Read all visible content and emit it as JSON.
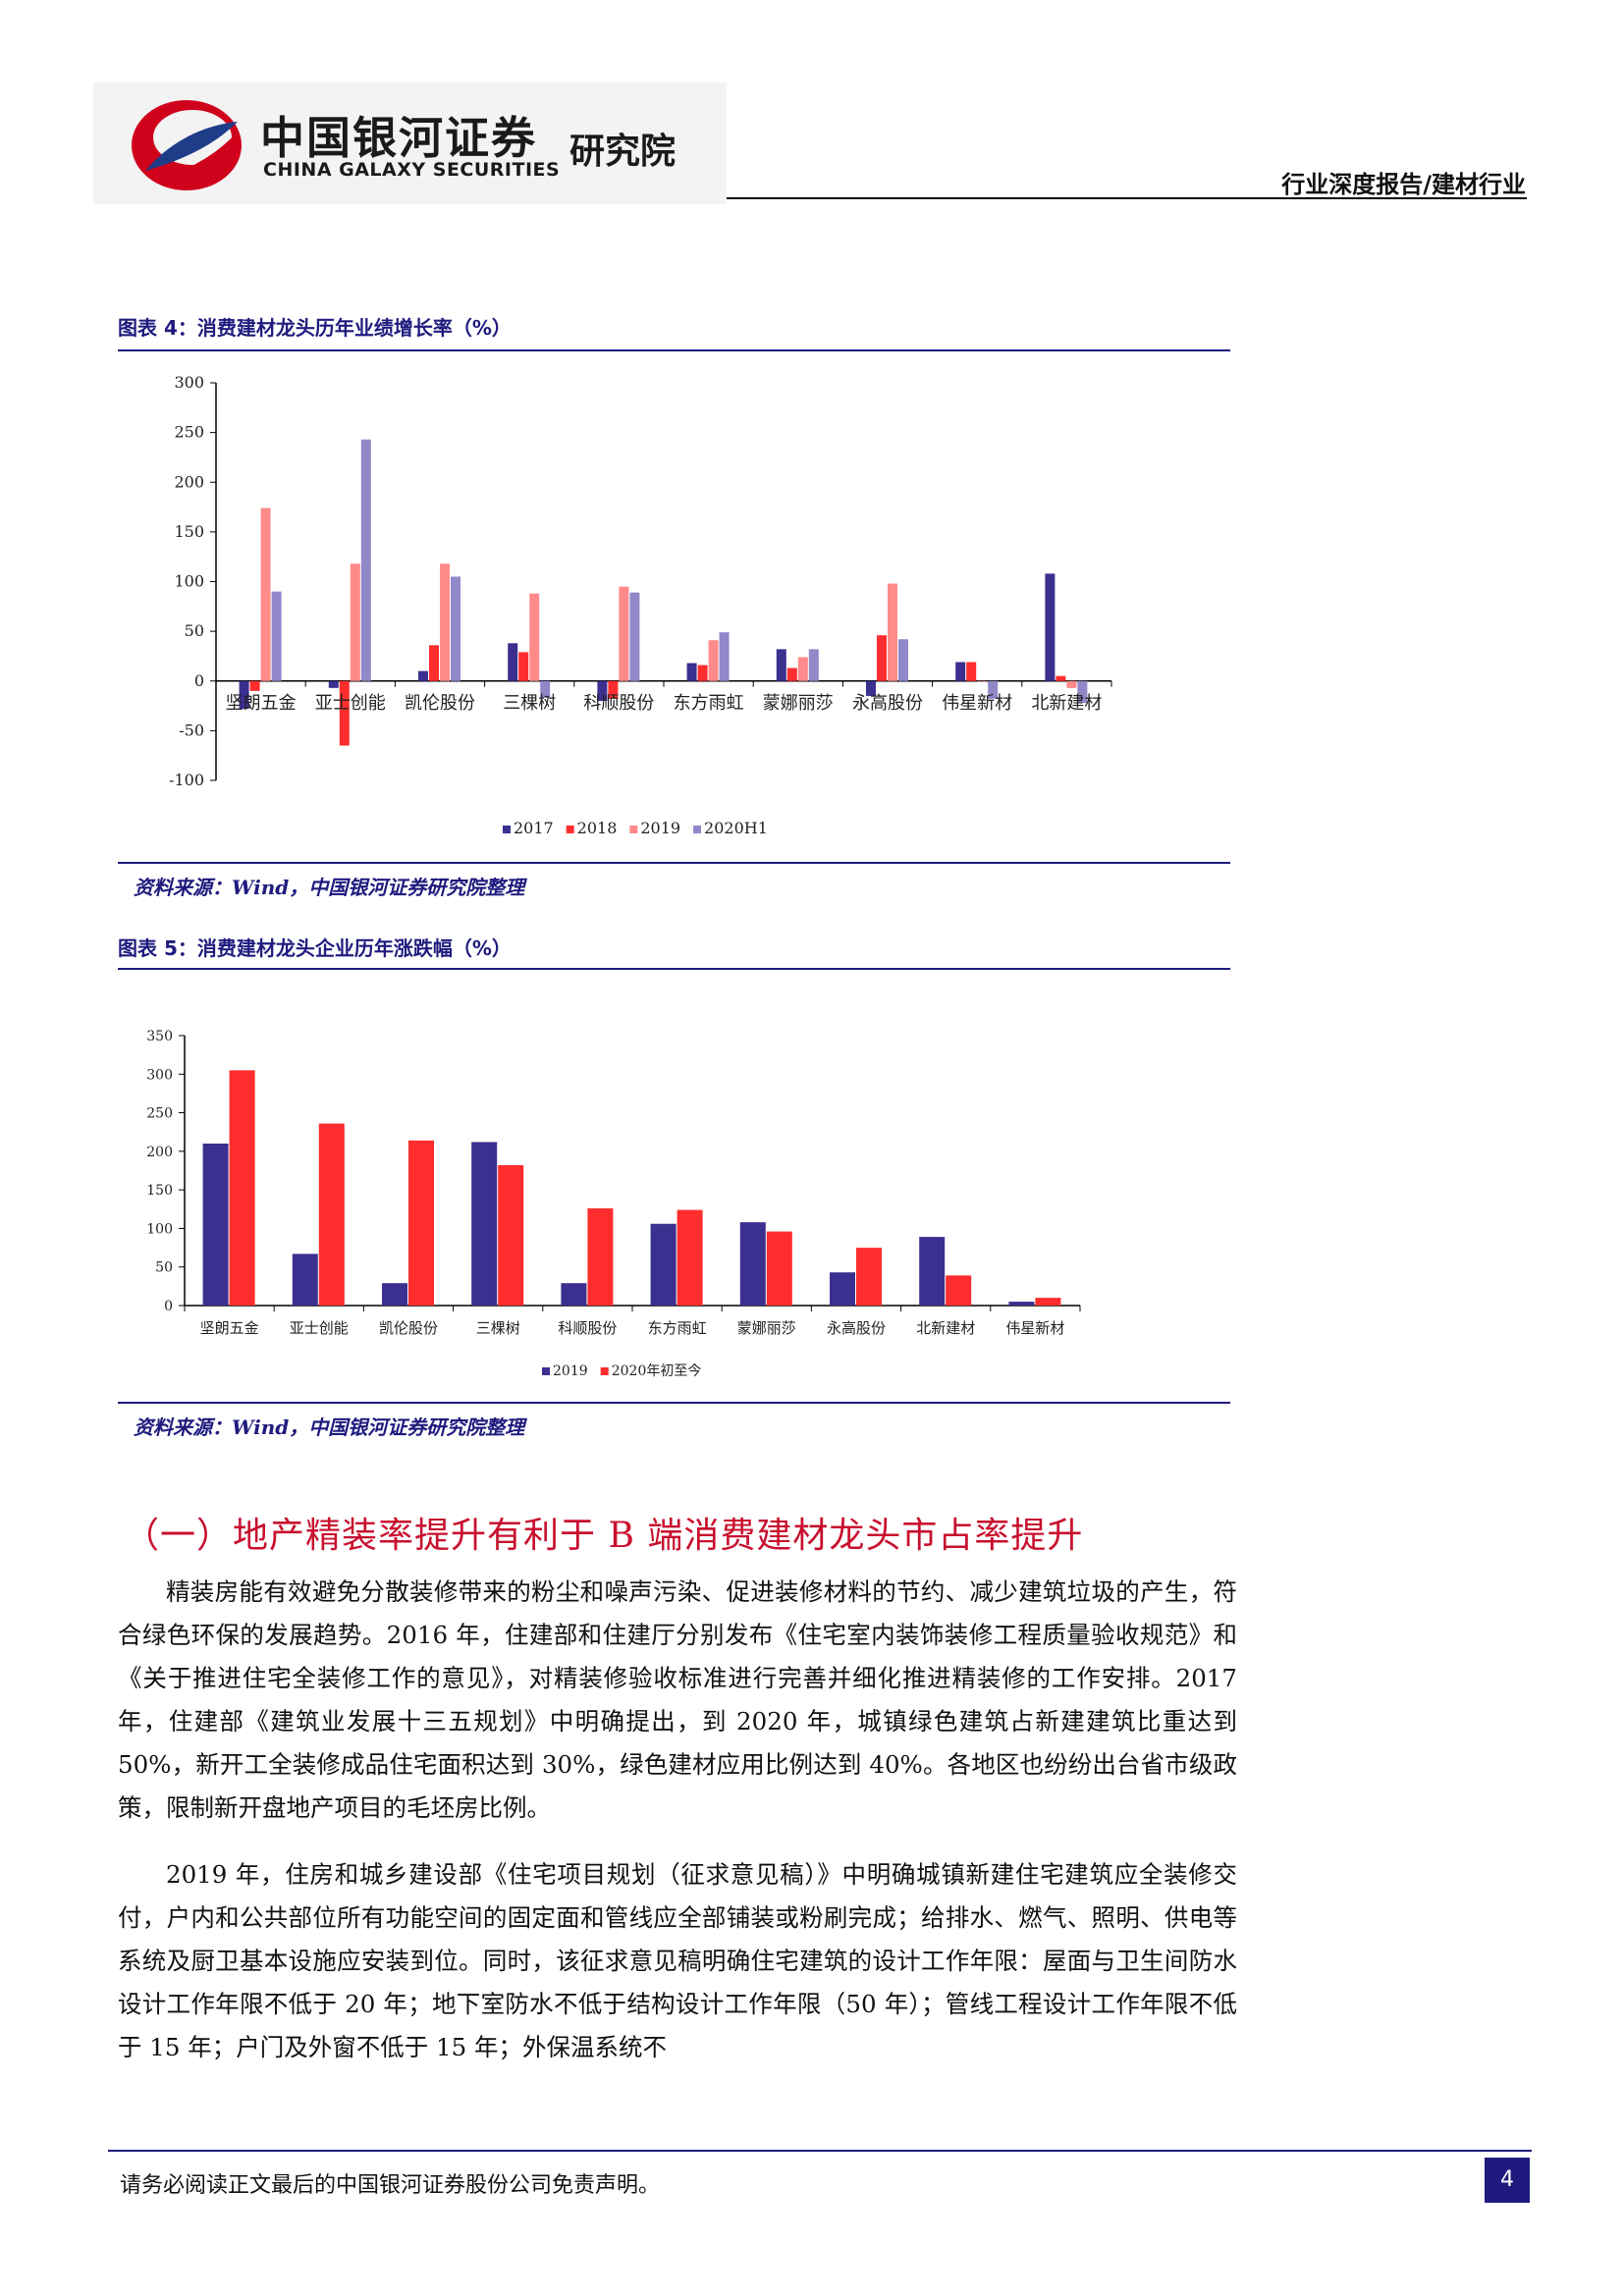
{
  "header": {
    "brand_cn": "中国银河证券",
    "brand_en": "CHINA GALAXY SECURITIES",
    "brand_inst": "研究院",
    "report_type": "行业深度报告/建材行业"
  },
  "figure4": {
    "title": "图表 4：消费建材龙头历年业绩增长率（%）",
    "source": "资料来源：Wind，中国银河证券研究院整理"
  },
  "figure5": {
    "title": "图表 5：消费建材龙头企业历年涨跌幅（%）",
    "source": "资料来源：Wind，中国银河证券研究院整理"
  },
  "colors": {
    "navy": "#3b2f8f",
    "red": "#ff2d2d",
    "pink": "#ff8a8a",
    "lavender": "#9188c9",
    "accent": "#1f1b7e",
    "heading": "#c8102e"
  },
  "chart_data": [
    {
      "type": "bar",
      "categories": [
        "坚朗五金",
        "亚士创能",
        "凯伦股份",
        "三棵树",
        "科顺股份",
        "东方雨虹",
        "蒙娜丽莎",
        "永高股份",
        "伟星新材",
        "北新建材"
      ],
      "series": [
        {
          "name": "2017",
          "color": "#3b2f8f",
          "values": [
            -28,
            -7,
            10,
            38,
            -20,
            18,
            32,
            -15,
            19,
            108
          ]
        },
        {
          "name": "2018",
          "color": "#ff2d2d",
          "values": [
            -10,
            -65,
            36,
            29,
            -18,
            16,
            13,
            46,
            19,
            5
          ]
        },
        {
          "name": "2019",
          "color": "#ff8a8a",
          "values": [
            174,
            118,
            118,
            88,
            95,
            41,
            24,
            98,
            0,
            -7
          ]
        },
        {
          "name": "2020H1",
          "color": "#9188c9",
          "values": [
            90,
            243,
            105,
            -17,
            89,
            49,
            32,
            42,
            -18,
            -22
          ]
        }
      ],
      "ylim": [
        -100,
        300
      ],
      "yticks": [
        "300",
        "250",
        "200",
        "150",
        "100",
        "50",
        "0",
        "-50",
        "-100"
      ],
      "legend": "bottom"
    },
    {
      "type": "bar",
      "categories": [
        "坚朗五金",
        "亚士创能",
        "凯伦股份",
        "三棵树",
        "科顺股份",
        "东方雨虹",
        "蒙娜丽莎",
        "永高股份",
        "北新建材",
        "伟星新材"
      ],
      "series": [
        {
          "name": "2019",
          "color": "#3b2f8f",
          "values": [
            210,
            67,
            29,
            212,
            29,
            106,
            108,
            43,
            89,
            5
          ]
        },
        {
          "name": "2020年初至今",
          "color": "#ff2d2d",
          "values": [
            305,
            236,
            214,
            182,
            126,
            124,
            96,
            75,
            39,
            10
          ]
        }
      ],
      "ylim": [
        0,
        350
      ],
      "yticks": [
        "350",
        "300",
        "250",
        "200",
        "150",
        "100",
        "50",
        "0"
      ],
      "legend": "bottom"
    }
  ],
  "section": {
    "heading": "（一）地产精装率提升有利于 B 端消费建材龙头市占率提升"
  },
  "body": {
    "para1": "精装房能有效避免分散装修带来的粉尘和噪声污染、促进装修材料的节约、减少建筑垃圾的产生，符合绿色环保的发展趋势。2016 年，住建部和住建厅分别发布《住宅室内装饰装修工程质量验收规范》和《关于推进住宅全装修工作的意见》，对精装修验收标准进行完善并细化推进精装修的工作安排。2017 年，住建部《建筑业发展十三五规划》中明确提出，到 2020 年，城镇绿色建筑占新建建筑比重达到 50%，新开工全装修成品住宅面积达到 30%，绿色建材应用比例达到 40%。各地区也纷纷出台省市级政策，限制新开盘地产项目的毛坯房比例。",
    "para2": "2019 年，住房和城乡建设部《住宅项目规划（征求意见稿）》中明确城镇新建住宅建筑应全装修交付，户内和公共部位所有功能空间的固定面和管线应全部铺装或粉刷完成；给排水、燃气、照明、供电等系统及厨卫基本设施应安装到位。同时，该征求意见稿明确住宅建筑的设计工作年限：屋面与卫生间防水设计工作年限不低于 20 年；地下室防水不低于结构设计工作年限（50 年）；管线工程设计工作年限不低于 15 年；户门及外窗不低于 15 年；外保温系统不"
  },
  "footer": {
    "disclaimer": "请务必阅读正文最后的中国银河证券股份公司免责声明。",
    "page": "4"
  }
}
